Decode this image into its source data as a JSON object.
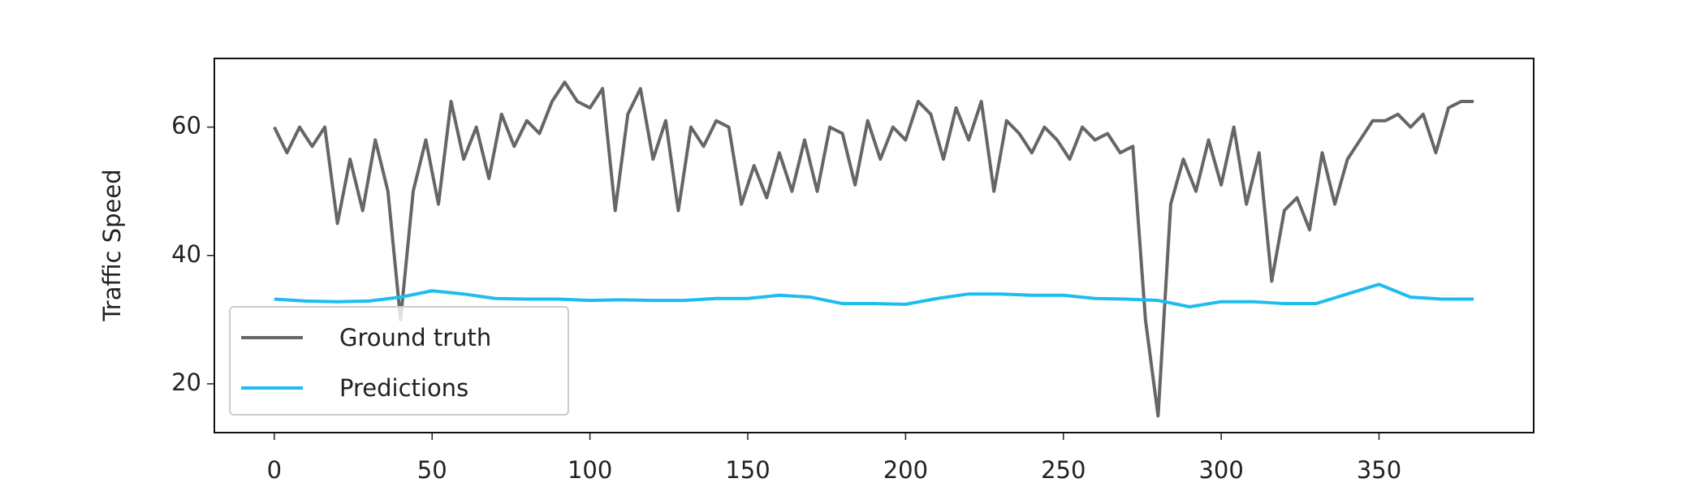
{
  "chart_data": {
    "type": "line",
    "ylabel": "Traffic Speed",
    "xlim": [
      -19,
      399
    ],
    "ylim": [
      12.4,
      70.7
    ],
    "xticks": [
      0,
      50,
      100,
      150,
      200,
      250,
      300,
      350
    ],
    "yticks": [
      20,
      40,
      60
    ],
    "legend": "lower left",
    "series": [
      {
        "name": "Ground truth",
        "color": "#666666",
        "x": [
          0,
          4,
          8,
          12,
          16,
          20,
          24,
          28,
          32,
          36,
          40,
          44,
          48,
          52,
          56,
          60,
          64,
          68,
          72,
          76,
          80,
          84,
          88,
          92,
          96,
          100,
          104,
          108,
          112,
          116,
          120,
          124,
          128,
          132,
          136,
          140,
          144,
          148,
          152,
          156,
          160,
          164,
          168,
          172,
          176,
          180,
          184,
          188,
          192,
          196,
          200,
          204,
          208,
          212,
          216,
          220,
          224,
          228,
          232,
          236,
          240,
          244,
          248,
          252,
          256,
          260,
          264,
          268,
          272,
          276,
          280,
          284,
          288,
          292,
          296,
          300,
          304,
          308,
          312,
          316,
          320,
          324,
          328,
          332,
          336,
          340,
          344,
          348,
          352,
          356,
          360,
          364,
          368,
          372,
          376,
          380
        ],
        "values": [
          60,
          56,
          60,
          57,
          60,
          45,
          55,
          47,
          58,
          50,
          30,
          50,
          58,
          48,
          64,
          55,
          60,
          52,
          62,
          57,
          61,
          59,
          64,
          67,
          64,
          63,
          66,
          47,
          62,
          66,
          55,
          61,
          47,
          60,
          57,
          61,
          60,
          48,
          54,
          49,
          56,
          50,
          58,
          50,
          60,
          59,
          51,
          61,
          55,
          60,
          58,
          64,
          62,
          55,
          63,
          58,
          64,
          50,
          61,
          59,
          56,
          60,
          58,
          55,
          60,
          58,
          59,
          56,
          57,
          30,
          15,
          48,
          55,
          50,
          58,
          51,
          60,
          48,
          56,
          36,
          47,
          49,
          44,
          56,
          48,
          55,
          58,
          61,
          61,
          62,
          60,
          62,
          56,
          63,
          64,
          64
        ]
      },
      {
        "name": "Predictions",
        "color": "#1ebdf0",
        "x": [
          0,
          10,
          20,
          30,
          40,
          50,
          60,
          70,
          80,
          90,
          100,
          110,
          120,
          130,
          140,
          150,
          160,
          170,
          180,
          190,
          200,
          210,
          220,
          230,
          240,
          250,
          260,
          270,
          280,
          290,
          300,
          310,
          320,
          330,
          340,
          350,
          360,
          370,
          380
        ],
        "values": [
          33.2,
          32.9,
          32.8,
          32.9,
          33.5,
          34.5,
          34,
          33.3,
          33.2,
          33.2,
          33,
          33.1,
          33,
          33,
          33.3,
          33.3,
          33.8,
          33.5,
          32.5,
          32.5,
          32.4,
          33.3,
          34,
          34,
          33.8,
          33.8,
          33.3,
          33.2,
          33,
          32,
          32.8,
          32.8,
          32.5,
          32.5,
          34,
          35.5,
          33.5,
          33.2,
          33.2
        ]
      }
    ]
  }
}
